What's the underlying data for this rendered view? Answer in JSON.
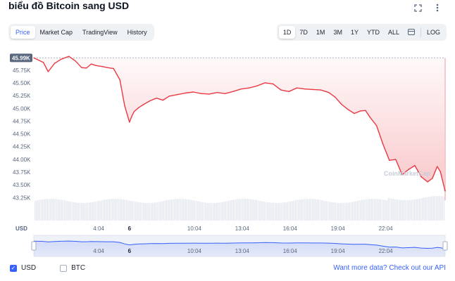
{
  "title": "biểu đồ Bitcoin sang USD",
  "icons": {
    "expand": "expand-icon",
    "more": "more-vertical-icon",
    "calendar": "calendar-icon"
  },
  "view_tabs": [
    "Price",
    "Market Cap",
    "TradingView",
    "History"
  ],
  "active_view": "Price",
  "ranges": [
    "1D",
    "7D",
    "1M",
    "3M",
    "1Y",
    "YTD",
    "ALL"
  ],
  "active_range": "1D",
  "log_label": "LOG",
  "watermark": "CoinMarketCap",
  "legend": {
    "usd_label": "USD",
    "btc_label": "BTC",
    "usd_checked": true,
    "btc_checked": false
  },
  "api_text": "Want more data? Check out our API",
  "colors": {
    "up": "#16c784",
    "down": "#ea3943",
    "accent": "#3861fb"
  },
  "chart_data": {
    "type": "line",
    "currency_label": "USD",
    "y_ticks": [
      "45.75K",
      "45.50K",
      "45.25K",
      "45.00K",
      "44.75K",
      "44.50K",
      "44.25K",
      "44.00K",
      "43.75K",
      "43.50K",
      "43.25K"
    ],
    "y_tick_values": [
      45750,
      45500,
      45250,
      45000,
      44750,
      44500,
      44250,
      44000,
      43750,
      43500,
      43250
    ],
    "ylim": [
      43200,
      46050
    ],
    "open_price": 45990,
    "open_label": "45.99K",
    "x_ticks": [
      "4:04",
      "6",
      "10:04",
      "13:04",
      "16:04",
      "19:04",
      "22:04"
    ],
    "x_tick_bold": [
      "6"
    ],
    "x_tick_hours": [
      4.07,
      6.0,
      10.07,
      13.07,
      16.07,
      19.07,
      22.07
    ],
    "x_range_hours": [
      0.0,
      25.8
    ],
    "grid": false,
    "series": [
      {
        "hours": [
          0.0,
          0.6,
          0.9,
          1.3,
          1.7,
          2.2,
          2.6,
          3.0,
          3.3,
          3.6,
          3.9,
          4.3,
          4.6,
          5.0,
          5.4,
          5.7,
          6.0,
          6.15,
          6.3,
          6.6,
          6.9,
          7.3,
          7.7,
          8.1,
          8.5,
          9.0,
          9.5,
          10.0,
          10.5,
          11.0,
          11.5,
          12.0,
          12.5,
          13.0,
          13.5,
          14.0,
          14.5,
          15.0,
          15.5,
          16.0,
          16.5,
          17.0,
          17.5,
          18.0,
          18.5,
          18.9,
          19.3,
          19.7,
          20.1,
          20.5,
          20.8,
          21.1,
          21.5,
          21.9,
          22.3,
          22.7,
          23.1,
          23.5,
          23.9,
          24.3,
          24.7,
          25.0,
          25.3,
          25.5,
          25.8
        ],
        "values": [
          45990,
          45900,
          45720,
          45880,
          45960,
          46020,
          45930,
          45800,
          45790,
          45870,
          45840,
          45820,
          45800,
          45780,
          45560,
          45050,
          44730,
          44850,
          44940,
          45020,
          45080,
          45150,
          45200,
          45160,
          45240,
          45270,
          45300,
          45320,
          45290,
          45280,
          45310,
          45290,
          45330,
          45380,
          45400,
          45440,
          45500,
          45480,
          45360,
          45330,
          45400,
          45380,
          45370,
          45360,
          45310,
          45220,
          45080,
          44980,
          44900,
          44950,
          44960,
          44820,
          44660,
          44300,
          43980,
          44000,
          43700,
          43800,
          43880,
          43660,
          43560,
          43630,
          43860,
          43760,
          43380
        ]
      }
    ],
    "volume_note": "volume bars shown beneath price line"
  },
  "navigator": {
    "x_ticks": [
      "4:04",
      "6",
      "10:04",
      "13:04",
      "16:04",
      "19:04",
      "22:04"
    ]
  }
}
